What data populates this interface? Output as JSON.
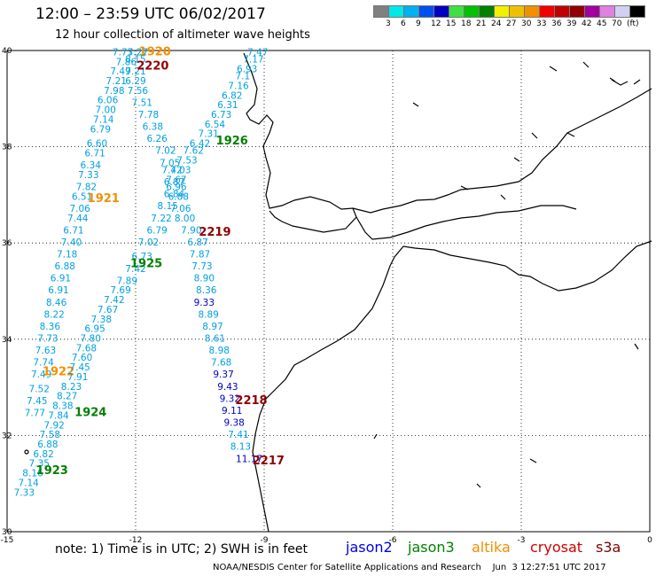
{
  "title": "12:00 – 23:59 UTC 06/02/2017",
  "subtitle": "12 hour collection of altimeter wave heights",
  "legend": {
    "colors": [
      "#808080",
      "#00e8e8",
      "#00b0f0",
      "#0050f0",
      "#0000c0",
      "#40e040",
      "#00c000",
      "#008000",
      "#f0f000",
      "#f0c000",
      "#f09000",
      "#f00000",
      "#c00000",
      "#900000",
      "#a000a0",
      "#e080e0",
      "#d0d0f0",
      "#000000"
    ],
    "labels": [
      "3",
      "6",
      "9",
      "12",
      "15",
      "18",
      "21",
      "24",
      "27",
      "30",
      "33",
      "36",
      "39",
      "42",
      "45",
      "70",
      "(ft)"
    ]
  },
  "axes": {
    "lat_ticks": [
      "40",
      "38",
      "36",
      "34",
      "32",
      "30"
    ],
    "lon_ticks": [
      "-15",
      "-12",
      "-9",
      "-6",
      "-3",
      "0"
    ]
  },
  "note": "note:  1) Time is in UTC; 2) SWH is in feet",
  "satellites": [
    {
      "name": "jason2",
      "color": "#0000e0"
    },
    {
      "name": "jason3",
      "color": "#008000"
    },
    {
      "name": "altika",
      "color": "#f09000"
    },
    {
      "name": "cryosat",
      "color": "#d00000"
    },
    {
      "name": "s3a",
      "color": "#800000"
    }
  ],
  "footer": "NOAA/NESDIS Center for Satellite Applications and Research    Jun  3 12:27:51 UTC 2017",
  "tracks": [
    {
      "id": "1920",
      "label": "1920",
      "color": "#f09000",
      "label_pos": [
        -11.55,
        39.9
      ],
      "points": [
        [
          -12.3,
          39.9,
          "7.73"
        ],
        [
          -12.22,
          39.7,
          "7.86"
        ],
        [
          -12.35,
          39.5,
          "7.49"
        ],
        [
          -12.45,
          39.3,
          "7.21"
        ],
        [
          -12.5,
          39.1,
          "7.98"
        ],
        [
          -12.65,
          38.9,
          "6.06"
        ],
        [
          -12.7,
          38.7,
          "7.00"
        ],
        [
          -12.75,
          38.5,
          "7.14"
        ],
        [
          -12.82,
          38.3,
          "6.79"
        ],
        [
          -12.9,
          38.0,
          "6.60"
        ],
        [
          -12.95,
          37.8,
          "6.71"
        ],
        [
          -13.05,
          37.55,
          "6.34"
        ],
        [
          -13.1,
          37.35,
          "7.33"
        ],
        [
          -13.15,
          37.1,
          "7.82"
        ],
        [
          -13.25,
          36.9,
          "6.51"
        ],
        [
          -13.3,
          36.65,
          "7.06"
        ],
        [
          -13.35,
          36.45,
          "7.44"
        ],
        [
          -13.45,
          36.2,
          "6.71"
        ],
        [
          -13.5,
          35.95,
          "7.40"
        ],
        [
          -13.6,
          35.7,
          "7.18"
        ],
        [
          -13.65,
          35.45,
          "6.88"
        ],
        [
          -13.75,
          35.2,
          "6.91"
        ],
        [
          -13.8,
          34.95,
          "6.91"
        ],
        [
          -13.85,
          34.7,
          "8.46"
        ],
        [
          -13.9,
          34.45,
          "8.22"
        ],
        [
          -14.0,
          34.2,
          "8.36"
        ],
        [
          -14.05,
          33.95,
          "7.73"
        ],
        [
          -14.1,
          33.7,
          "7.63"
        ],
        [
          -14.15,
          33.45,
          "7.74"
        ],
        [
          -14.2,
          33.2,
          "7.49"
        ],
        [
          -14.25,
          32.9,
          "7.52"
        ],
        [
          -14.3,
          32.65,
          "7.45"
        ],
        [
          -14.35,
          32.4,
          "7.77"
        ]
      ]
    },
    {
      "id": "1921",
      "label": "1921",
      "color": "#f09000",
      "label_pos": [
        -12.75,
        36.85
      ],
      "points": []
    },
    {
      "id": "1922",
      "label": "1922",
      "color": "#f09000",
      "label_pos": [
        -13.8,
        33.25
      ],
      "points": []
    },
    {
      "id": "1923",
      "label": "1923",
      "color": "#008000",
      "label_pos": [
        -13.95,
        31.2
      ],
      "points": [
        [
          -11.95,
          39.9,
          "7.27"
        ],
        [
          -12.0,
          39.75,
          "8.15"
        ],
        [
          -12.0,
          39.5,
          "7.21"
        ],
        [
          -12.0,
          39.3,
          "6.29"
        ],
        [
          -11.95,
          39.1,
          "7.56"
        ],
        [
          -11.85,
          38.85,
          "7.51"
        ],
        [
          -11.7,
          38.6,
          "7.78"
        ],
        [
          -11.6,
          38.35,
          "6.38"
        ],
        [
          -11.5,
          38.1,
          "6.26"
        ],
        [
          -11.3,
          37.85,
          "7.02"
        ],
        [
          -11.2,
          37.6,
          "7.05"
        ],
        [
          -11.15,
          37.45,
          "7.42"
        ],
        [
          -11.1,
          37.2,
          "6.87"
        ],
        [
          -11.1,
          36.95,
          "6.84"
        ],
        [
          -11.25,
          36.7,
          "8.15"
        ],
        [
          -11.4,
          36.45,
          "7.22"
        ],
        [
          -11.5,
          36.2,
          "6.79"
        ],
        [
          -11.7,
          35.95,
          "7.02"
        ],
        [
          -11.85,
          35.65,
          "6.73"
        ],
        [
          -12.0,
          35.4,
          "7.42"
        ],
        [
          -12.2,
          35.15,
          "7.89"
        ],
        [
          -12.35,
          34.95,
          "7.69"
        ],
        [
          -12.5,
          34.75,
          "7.42"
        ],
        [
          -12.65,
          34.55,
          "7.67"
        ],
        [
          -12.8,
          34.35,
          "7.38"
        ],
        [
          -12.95,
          34.15,
          "6.95"
        ],
        [
          -13.05,
          33.95,
          "7.80"
        ],
        [
          -13.15,
          33.75,
          "7.68"
        ],
        [
          -13.25,
          33.55,
          "7.60"
        ],
        [
          -13.3,
          33.35,
          "7.45"
        ],
        [
          -13.35,
          33.15,
          "7.91"
        ],
        [
          -13.5,
          32.95,
          "8.23"
        ],
        [
          -13.6,
          32.75,
          "8.27"
        ],
        [
          -13.7,
          32.55,
          "8.38"
        ],
        [
          -13.8,
          32.35,
          "7.84"
        ],
        [
          -13.9,
          32.15,
          "7.92"
        ],
        [
          -14.0,
          31.95,
          "7.58"
        ],
        [
          -14.05,
          31.75,
          "6.88"
        ],
        [
          -14.15,
          31.55,
          "6.82"
        ],
        [
          -14.25,
          31.35,
          "7.35"
        ],
        [
          -14.4,
          31.15,
          "8.16"
        ],
        [
          -14.5,
          30.95,
          "7.14"
        ],
        [
          -14.6,
          30.75,
          "7.33"
        ]
      ]
    },
    {
      "id": "1924",
      "label": "1924",
      "color": "#008000",
      "label_pos": [
        -13.05,
        32.4
      ],
      "points": []
    },
    {
      "id": "1925",
      "label": "1925",
      "color": "#008000",
      "label_pos": [
        -11.75,
        35.5
      ],
      "points": []
    },
    {
      "id": "1926",
      "label": "1926",
      "color": "#008000",
      "label_pos": [
        -9.75,
        38.05
      ],
      "points": [
        [
          -9.15,
          39.9,
          "7.47"
        ],
        [
          -9.25,
          39.75,
          "7.17"
        ],
        [
          -9.4,
          39.55,
          "6.93"
        ],
        [
          -9.5,
          39.4,
          "7.1"
        ],
        [
          -9.6,
          39.2,
          "7.16"
        ],
        [
          -9.75,
          39.0,
          "6.82"
        ],
        [
          -9.85,
          38.8,
          "6.31"
        ],
        [
          -10.0,
          38.6,
          "6.73"
        ],
        [
          -10.15,
          38.4,
          "6.54"
        ],
        [
          -10.3,
          38.2,
          "7.31"
        ],
        [
          -10.5,
          38.0,
          "6.42"
        ],
        [
          -10.65,
          37.85,
          "7.62"
        ],
        [
          -10.8,
          37.65,
          "7.53"
        ],
        [
          -10.95,
          37.45,
          "7.03"
        ],
        [
          -11.05,
          37.25,
          "7.67"
        ],
        [
          -11.05,
          37.1,
          "6.96"
        ],
        [
          -11.0,
          36.9,
          "6.88"
        ],
        [
          -10.95,
          36.65,
          "7.06"
        ],
        [
          -10.85,
          36.45,
          "8.00"
        ],
        [
          -10.7,
          36.2,
          "7.90"
        ],
        [
          -10.55,
          35.95,
          "6.87"
        ],
        [
          -10.5,
          35.7,
          "7.87"
        ],
        [
          -10.45,
          35.45,
          "7.73"
        ],
        [
          -10.4,
          35.2,
          "8.90"
        ],
        [
          -10.35,
          34.95,
          "8.36"
        ]
      ]
    },
    {
      "id": "2217",
      "label": "2217",
      "color": "#900000",
      "label_pos": [
        -8.9,
        31.4
      ],
      "points": [
        [
          -10.4,
          34.7,
          "9.33"
        ],
        [
          -10.3,
          34.45,
          "8.89"
        ],
        [
          -10.2,
          34.2,
          "8.97"
        ],
        [
          -10.15,
          33.95,
          "8.61"
        ],
        [
          -10.05,
          33.7,
          "8.98"
        ],
        [
          -10.0,
          33.45,
          "7.68"
        ],
        [
          -9.95,
          33.2,
          "9.37"
        ],
        [
          -9.85,
          32.95,
          "9.43"
        ],
        [
          -9.8,
          32.7,
          "9.32"
        ],
        [
          -9.75,
          32.45,
          "9.11"
        ],
        [
          -9.7,
          32.2,
          "9.38"
        ],
        [
          -9.6,
          31.95,
          "7.41"
        ],
        [
          -9.55,
          31.7,
          "8.13"
        ],
        [
          -9.35,
          31.45,
          "11.17"
        ]
      ]
    },
    {
      "id": "2218",
      "label": "2218",
      "color": "#900000",
      "label_pos": [
        -9.3,
        32.65
      ],
      "points": []
    },
    {
      "id": "2219",
      "label": "2219",
      "color": "#900000",
      "label_pos": [
        -10.15,
        36.15
      ],
      "points": []
    },
    {
      "id": "2220",
      "label": "2220",
      "color": "#900000",
      "label_pos": [
        -11.6,
        39.6
      ],
      "points": []
    }
  ]
}
